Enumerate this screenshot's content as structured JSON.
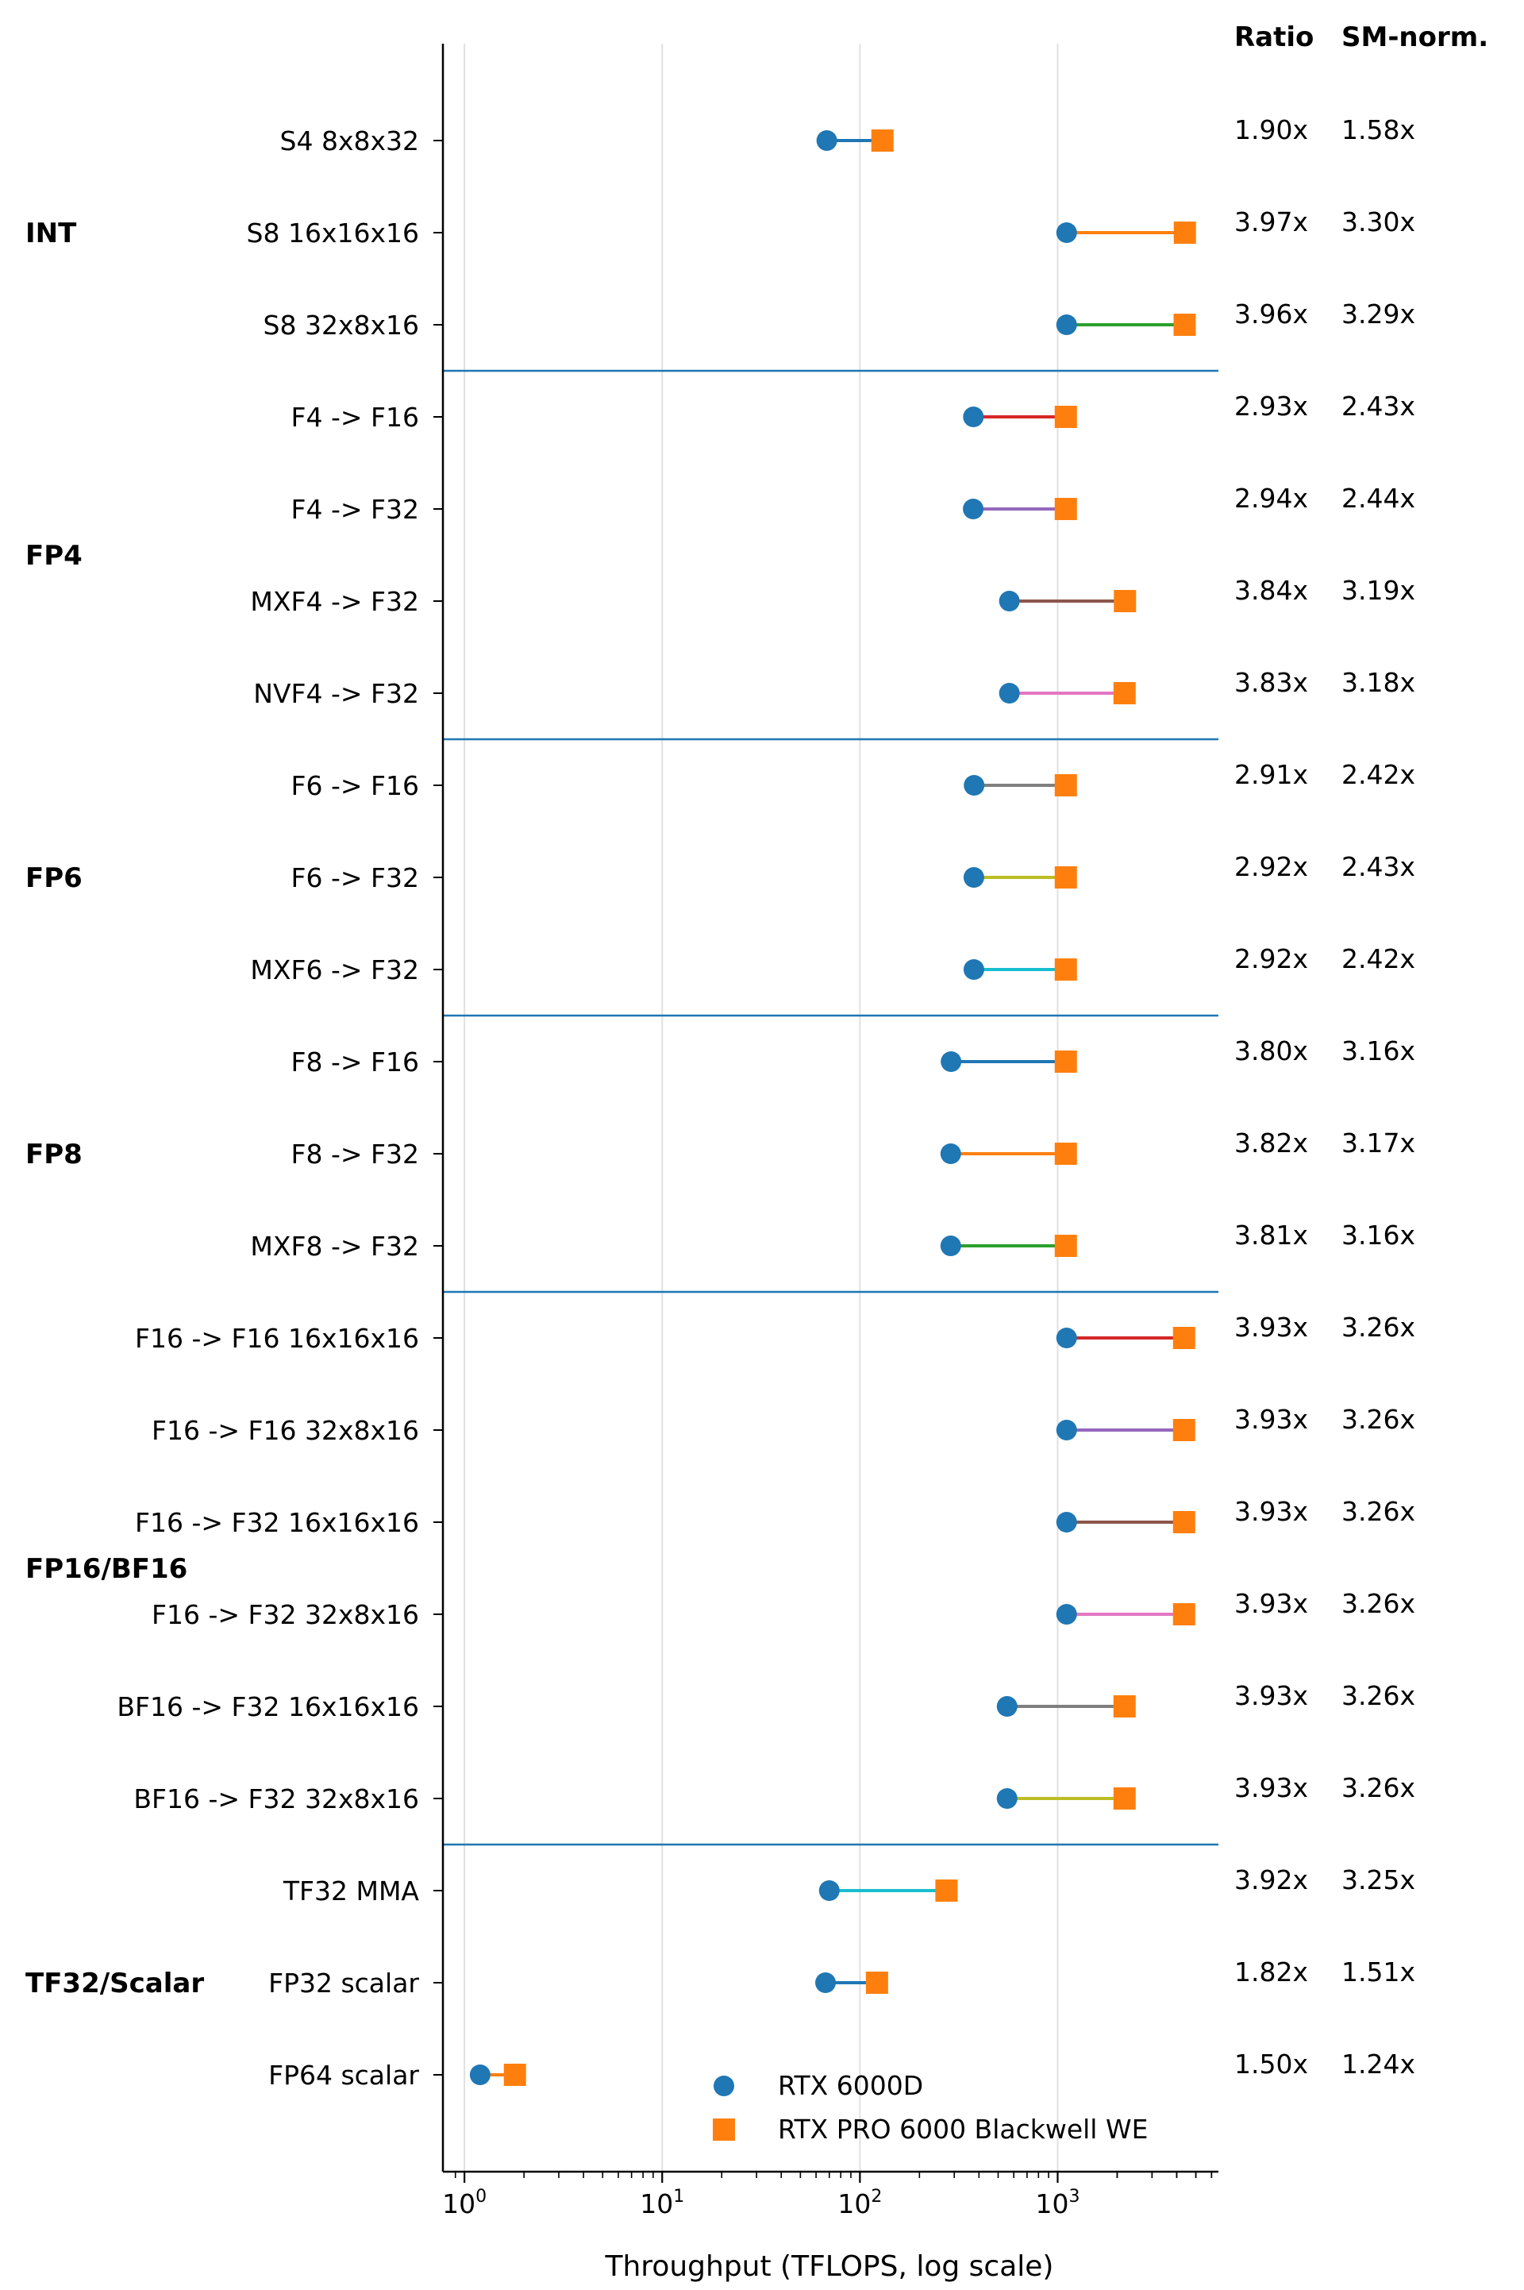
{
  "chart_data": {
    "type": "dumbbell",
    "xlabel": "Throughput (TFLOPS, log scale)",
    "xscale": "log",
    "xlim": [
      0.8,
      6500
    ],
    "x_ticks": [
      {
        "base": "10",
        "exp": "0",
        "value": 1
      },
      {
        "base": "10",
        "exp": "1",
        "value": 10
      },
      {
        "base": "10",
        "exp": "2",
        "value": 100
      },
      {
        "base": "10",
        "exp": "3",
        "value": 1000
      }
    ],
    "grid": "vertical-major",
    "legend_position": "lower-center",
    "series": [
      {
        "name": "RTX 6000D",
        "marker": "circle",
        "color": "#1f77b4"
      },
      {
        "name": "RTX PRO 6000 Blackwell WE",
        "marker": "square",
        "color": "#ff7f0e"
      }
    ],
    "column_headers": {
      "ratio": "Ratio",
      "sm_norm": "SM-norm."
    },
    "groups": [
      {
        "label": "INT",
        "rows": [
          {
            "label": "S4 8x8x32",
            "a": 68,
            "b": 130,
            "ratio": "1.90x",
            "sm_norm": "1.58x",
            "line_color": "#1f77b4"
          },
          {
            "label": "S8 16x16x16",
            "a": 1110,
            "b": 4400,
            "ratio": "3.97x",
            "sm_norm": "3.30x",
            "line_color": "#ff7f0e"
          },
          {
            "label": "S8 32x8x16",
            "a": 1110,
            "b": 4390,
            "ratio": "3.96x",
            "sm_norm": "3.29x",
            "line_color": "#2ca02c"
          }
        ]
      },
      {
        "label": "FP4",
        "rows": [
          {
            "label": "F4 -> F16",
            "a": 375,
            "b": 1100,
            "ratio": "2.93x",
            "sm_norm": "2.43x",
            "line_color": "#d62728"
          },
          {
            "label": "F4 -> F32",
            "a": 374,
            "b": 1100,
            "ratio": "2.94x",
            "sm_norm": "2.44x",
            "line_color": "#9467bd"
          },
          {
            "label": "MXF4 -> F32",
            "a": 570,
            "b": 2190,
            "ratio": "3.84x",
            "sm_norm": "3.19x",
            "line_color": "#8c564b"
          },
          {
            "label": "NVF4 -> F32",
            "a": 570,
            "b": 2180,
            "ratio": "3.83x",
            "sm_norm": "3.18x",
            "line_color": "#e377c2"
          }
        ]
      },
      {
        "label": "FP6",
        "rows": [
          {
            "label": "F6 -> F16",
            "a": 378,
            "b": 1100,
            "ratio": "2.91x",
            "sm_norm": "2.42x",
            "line_color": "#7f7f7f"
          },
          {
            "label": "F6 -> F32",
            "a": 377,
            "b": 1100,
            "ratio": "2.92x",
            "sm_norm": "2.43x",
            "line_color": "#bcbd22"
          },
          {
            "label": "MXF6 -> F32",
            "a": 377,
            "b": 1100,
            "ratio": "2.92x",
            "sm_norm": "2.42x",
            "line_color": "#17becf"
          }
        ]
      },
      {
        "label": "FP8",
        "rows": [
          {
            "label": "F8 -> F16",
            "a": 289,
            "b": 1100,
            "ratio": "3.80x",
            "sm_norm": "3.16x",
            "line_color": "#1f77b4"
          },
          {
            "label": "F8 -> F32",
            "a": 288,
            "b": 1100,
            "ratio": "3.82x",
            "sm_norm": "3.17x",
            "line_color": "#ff7f0e"
          },
          {
            "label": "MXF8 -> F32",
            "a": 288,
            "b": 1100,
            "ratio": "3.81x",
            "sm_norm": "3.16x",
            "line_color": "#2ca02c"
          }
        ]
      },
      {
        "label": "FP16/BF16",
        "rows": [
          {
            "label": "F16 -> F16 16x16x16",
            "a": 1110,
            "b": 4360,
            "ratio": "3.93x",
            "sm_norm": "3.26x",
            "line_color": "#d62728"
          },
          {
            "label": "F16 -> F16 32x8x16",
            "a": 1110,
            "b": 4360,
            "ratio": "3.93x",
            "sm_norm": "3.26x",
            "line_color": "#9467bd"
          },
          {
            "label": "F16 -> F32 16x16x16",
            "a": 1110,
            "b": 4360,
            "ratio": "3.93x",
            "sm_norm": "3.26x",
            "line_color": "#8c564b"
          },
          {
            "label": "F16 -> F32 32x8x16",
            "a": 1110,
            "b": 4360,
            "ratio": "3.93x",
            "sm_norm": "3.26x",
            "line_color": "#e377c2"
          },
          {
            "label": "BF16 -> F32 16x16x16",
            "a": 555,
            "b": 2180,
            "ratio": "3.93x",
            "sm_norm": "3.26x",
            "line_color": "#7f7f7f"
          },
          {
            "label": "BF16 -> F32 32x8x16",
            "a": 555,
            "b": 2180,
            "ratio": "3.93x",
            "sm_norm": "3.26x",
            "line_color": "#bcbd22"
          }
        ]
      },
      {
        "label": "TF32/Scalar",
        "rows": [
          {
            "label": "TF32 MMA",
            "a": 70,
            "b": 274,
            "ratio": "3.92x",
            "sm_norm": "3.25x",
            "line_color": "#17becf"
          },
          {
            "label": "FP32 scalar",
            "a": 67,
            "b": 122,
            "ratio": "1.82x",
            "sm_norm": "1.51x",
            "line_color": "#1f77b4"
          },
          {
            "label": "FP64 scalar",
            "a": 1.2,
            "b": 1.8,
            "ratio": "1.50x",
            "sm_norm": "1.24x",
            "line_color": "#ff7f0e"
          }
        ]
      }
    ]
  }
}
